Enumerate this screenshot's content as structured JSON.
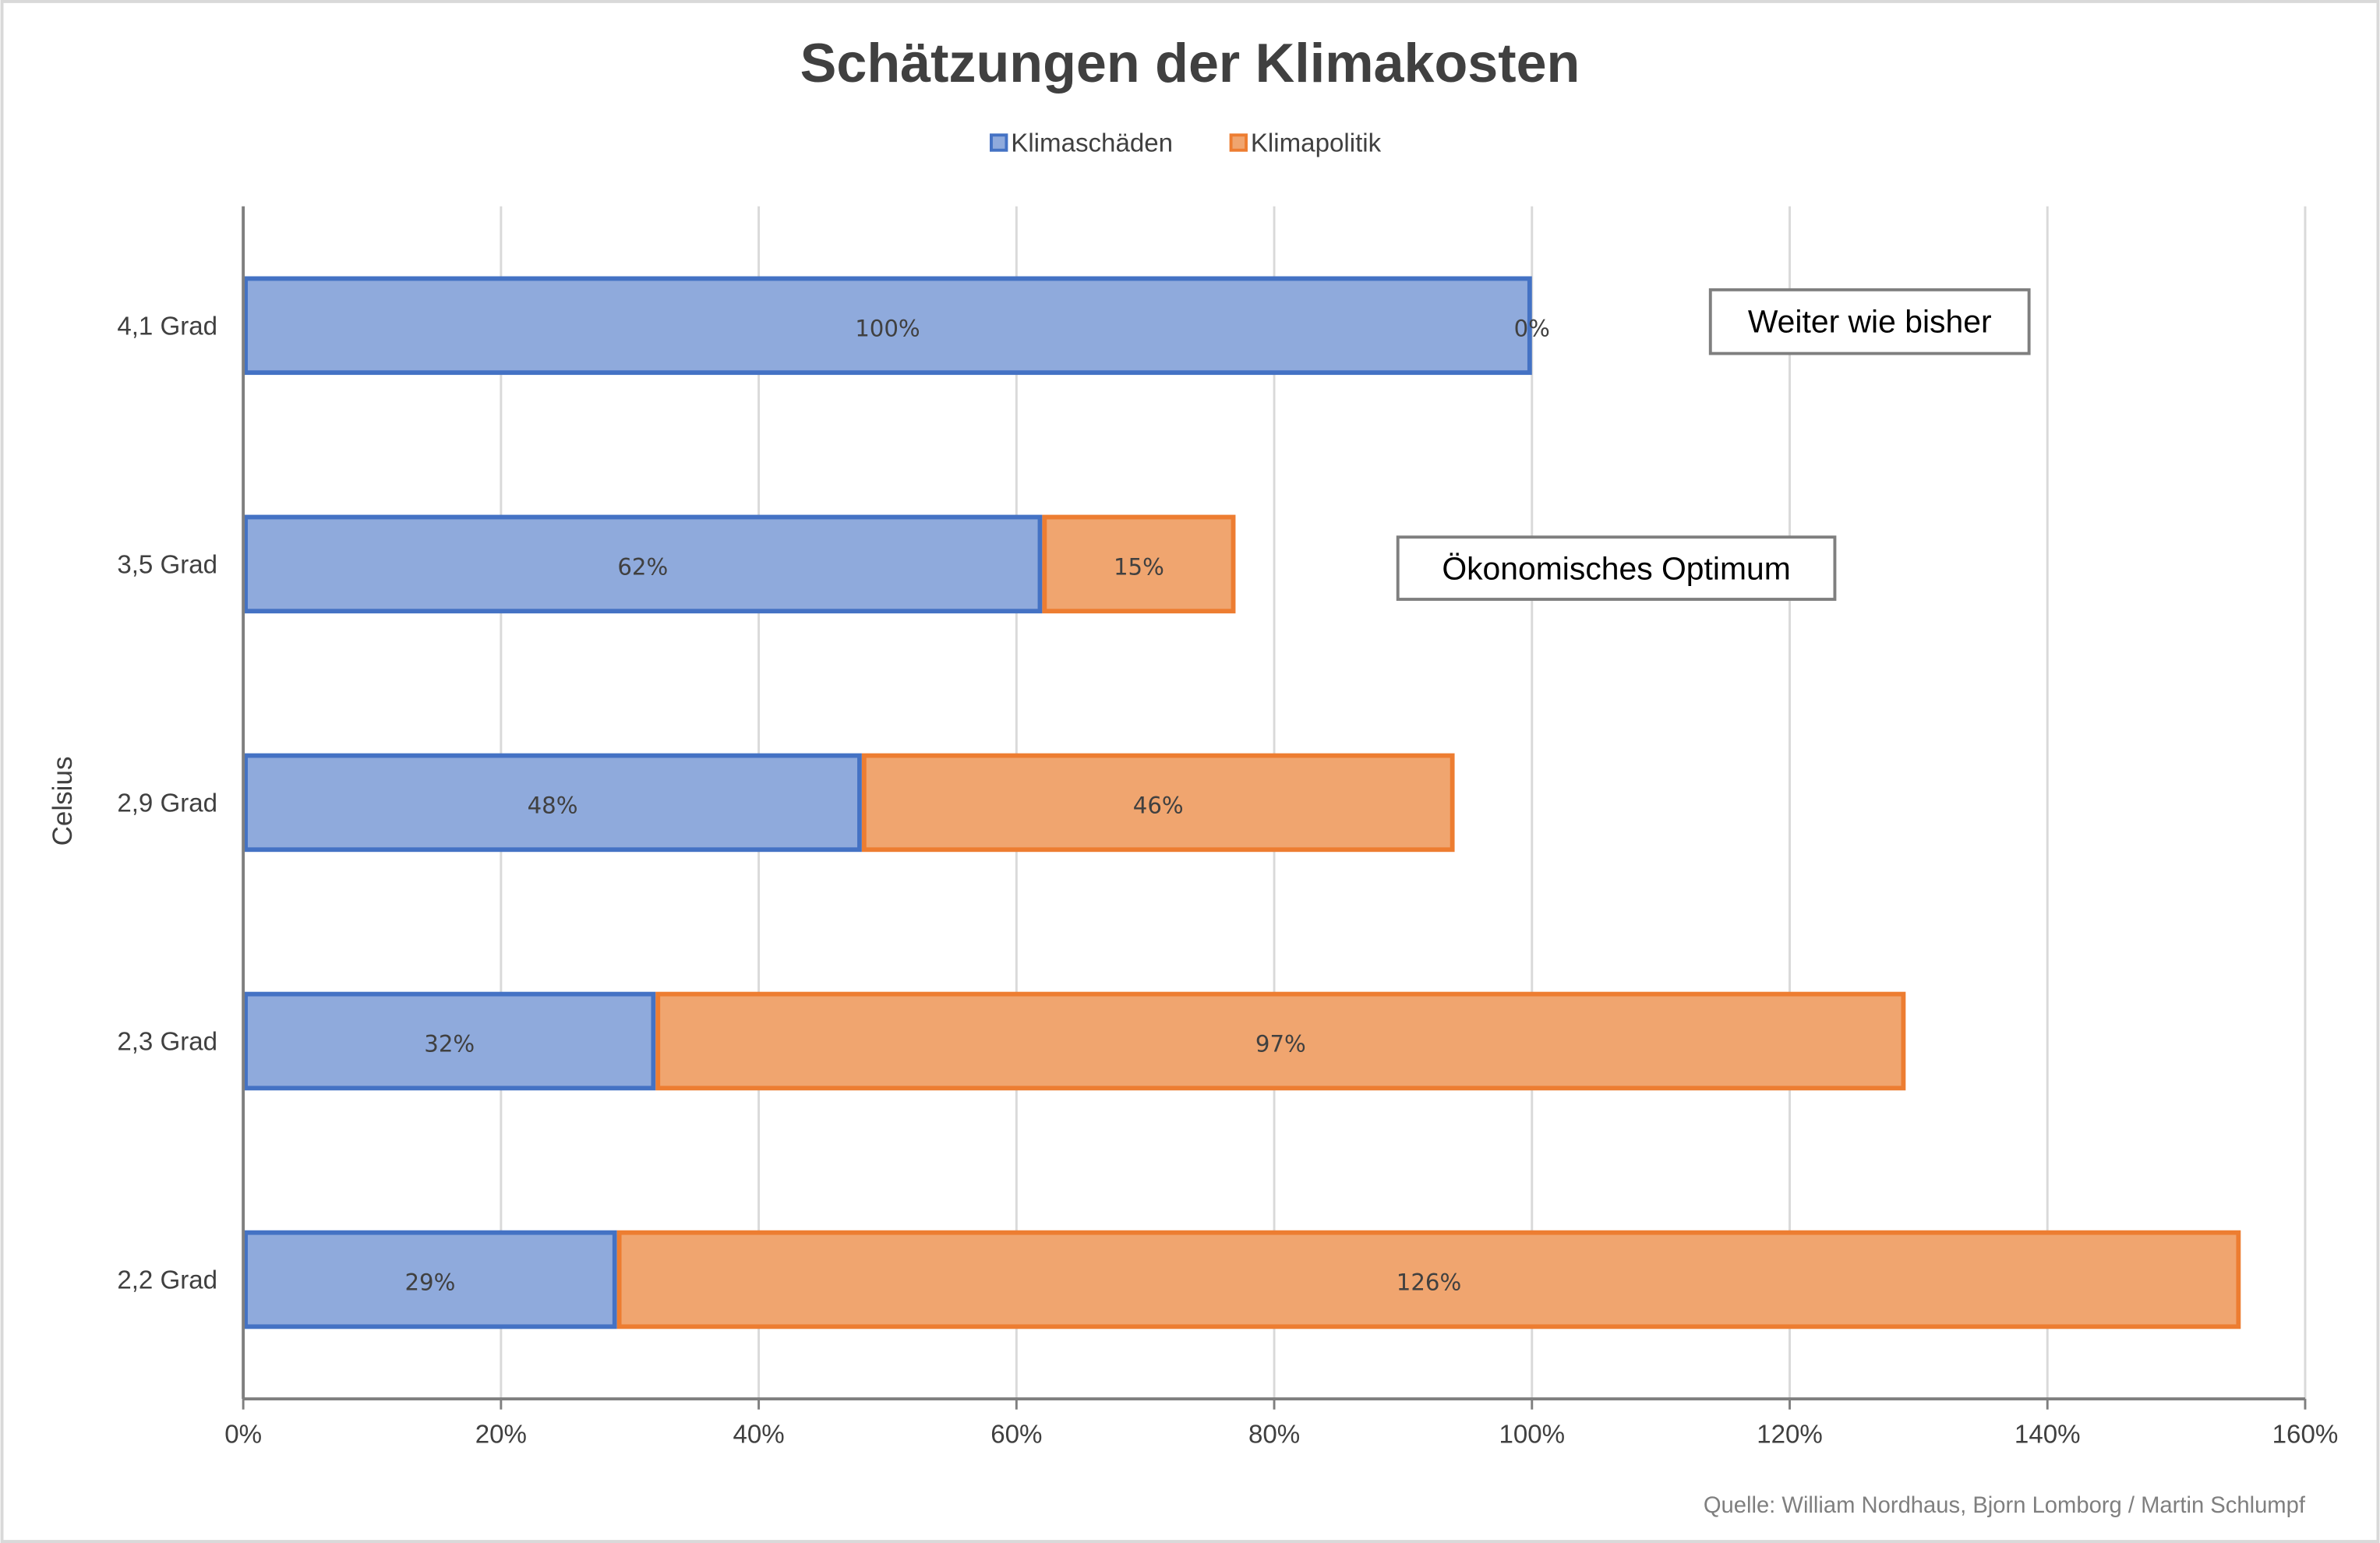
{
  "chart_data": {
    "type": "bar",
    "orientation": "horizontal",
    "stacked": true,
    "title": "Schätzungen der Klimakosten",
    "ylabel": "Celsius",
    "xlabel": "",
    "categories": [
      "4,1 Grad",
      "3,5 Grad",
      "2,9 Grad",
      "2,3 Grad",
      "2,2 Grad"
    ],
    "series": [
      {
        "name": "Klimaschäden",
        "color": "#4472C4",
        "fill": "#8FAADC",
        "values": [
          100,
          62,
          48,
          32,
          29
        ],
        "labels": [
          "100%",
          "62%",
          "48%",
          "32%",
          "29%"
        ]
      },
      {
        "name": "Klimapolitik",
        "color": "#ED7D31",
        "fill": "#F0A56F",
        "values": [
          0,
          15,
          46,
          97,
          126
        ],
        "labels": [
          "0%",
          "15%",
          "46%",
          "97%",
          "126%"
        ]
      }
    ],
    "xlim": [
      0,
      160
    ],
    "xticks": [
      0,
      20,
      40,
      60,
      80,
      100,
      120,
      140,
      160
    ],
    "xtick_labels": [
      "0%",
      "20%",
      "40%",
      "60%",
      "80%",
      "100%",
      "120%",
      "140%",
      "160%"
    ],
    "grid": true,
    "legend_position": "top",
    "annotations": [
      "Weiter wie bisher",
      "Ökonomisches Optimum"
    ],
    "source": "Quelle:  William Nordhaus, Bjorn Lomborg / Martin Schlumpf"
  }
}
